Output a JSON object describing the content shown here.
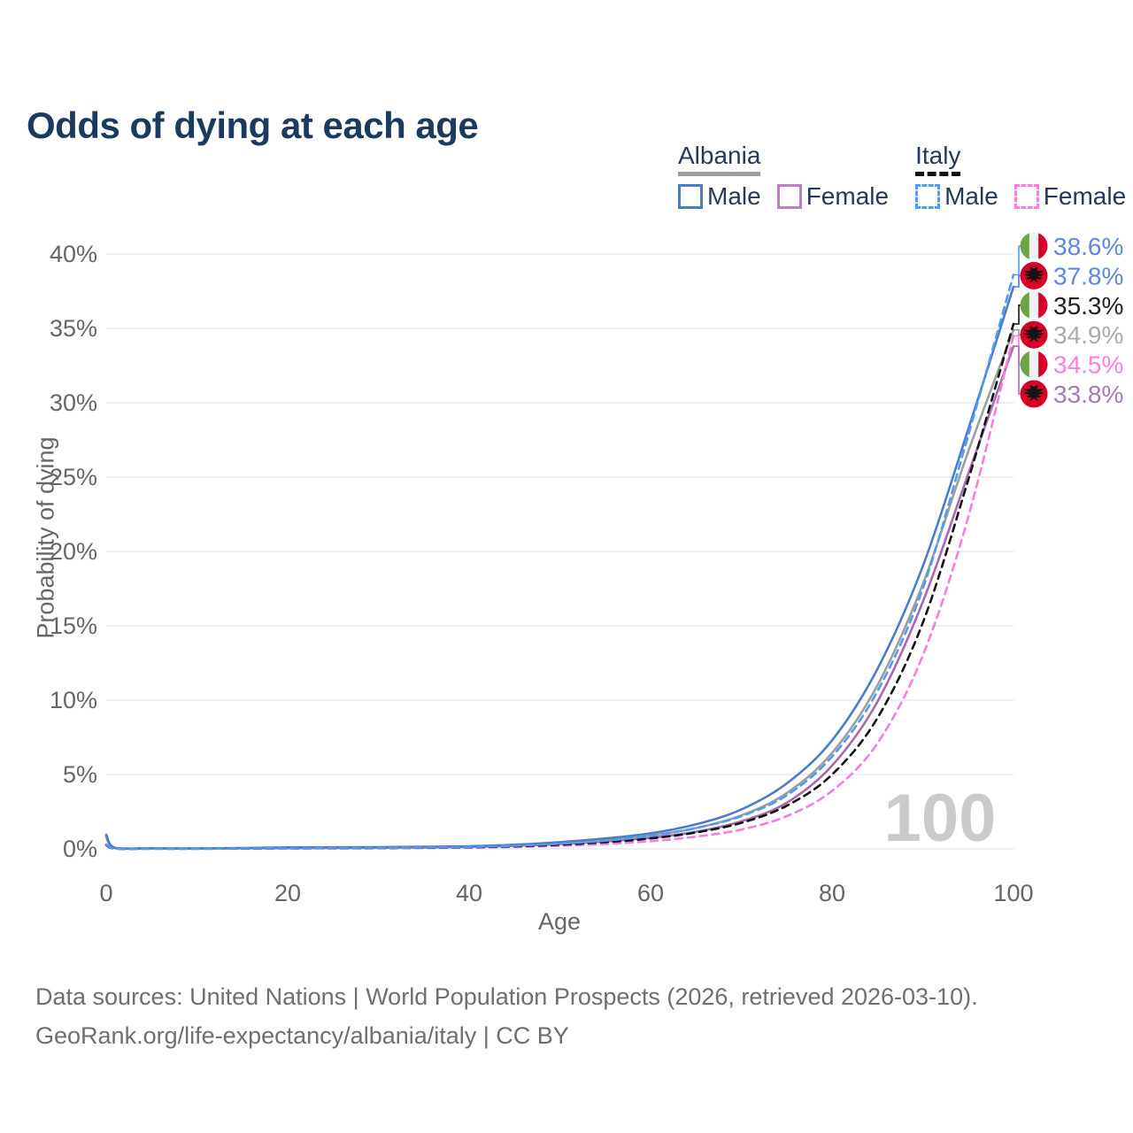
{
  "title": "Odds of dying at each age",
  "colors": {
    "title_text": "#1c3a5e",
    "legend_text": "#26395a",
    "axis_text": "#666666",
    "gridline": "#e8e8e8",
    "watermark": "#cbcbcb",
    "footer_text": "#6f6f6f",
    "albania_flag_red": "#d80027",
    "italy_flag_green": "#6da544",
    "italy_flag_red": "#d80027"
  },
  "legend": {
    "groups": [
      {
        "country": "Albania",
        "line_style": "solid",
        "underline_color": "#9e9e9e",
        "items": [
          {
            "label": "Male",
            "color": "#4a7dc9"
          },
          {
            "label": "Female",
            "color": "#bd7fc0"
          }
        ]
      },
      {
        "country": "Italy",
        "line_style": "dashed",
        "underline_color": "#141414",
        "items": [
          {
            "label": "Male",
            "color": "#4f9bf5"
          },
          {
            "label": "Female",
            "color": "#fb7be1"
          }
        ]
      }
    ]
  },
  "chart_data": {
    "type": "line",
    "title": "Odds of dying at each age",
    "xlabel": "Age",
    "ylabel": "Probability of dying",
    "x_ticks": [
      0,
      20,
      40,
      60,
      80,
      100
    ],
    "y_ticks": [
      "0%",
      "5%",
      "10%",
      "15%",
      "20%",
      "25%",
      "30%",
      "35%",
      "40%"
    ],
    "xlim": [
      0,
      100
    ],
    "ylim_pct": [
      0,
      40
    ],
    "grid": "horizontal",
    "legend_position": "top-right",
    "watermark": "100",
    "ages": [
      0,
      1,
      5,
      10,
      15,
      20,
      25,
      30,
      35,
      40,
      45,
      50,
      55,
      60,
      65,
      70,
      75,
      80,
      85,
      90,
      95,
      100
    ],
    "series": [
      {
        "id": "italy-male",
        "name": "Italy Male",
        "country": "Italy",
        "sex": "male",
        "color": "#4f9bf5",
        "dashed": true,
        "flag": "italy",
        "end_label": "38.6%",
        "end_value_pct": 38.6,
        "end_label_color": "#5c89e0",
        "values_pct": [
          0.3,
          0.02,
          0.015,
          0.013,
          0.03,
          0.05,
          0.06,
          0.07,
          0.09,
          0.13,
          0.21,
          0.35,
          0.55,
          0.88,
          1.4,
          2.2,
          3.6,
          6.2,
          10.6,
          17.5,
          27.8,
          38.6
        ]
      },
      {
        "id": "albania-male",
        "name": "Albania Male",
        "country": "Albania",
        "sex": "male",
        "color": "#4a7dc9",
        "dashed": false,
        "flag": "albania",
        "end_label": "37.8%",
        "end_value_pct": 37.8,
        "end_label_color": "#5c89e0",
        "values_pct": [
          0.95,
          0.06,
          0.04,
          0.03,
          0.06,
          0.1,
          0.11,
          0.12,
          0.14,
          0.18,
          0.28,
          0.45,
          0.7,
          1.05,
          1.65,
          2.65,
          4.4,
          7.3,
          12.1,
          19.0,
          28.2,
          37.8
        ]
      },
      {
        "id": "italy-both",
        "name": "Italy Both sexes",
        "country": "Italy",
        "sex": "both",
        "color": "#141414",
        "dashed": true,
        "flag": "italy",
        "end_label": "35.3%",
        "end_value_pct": 35.3,
        "end_label_color": "#222222",
        "values_pct": [
          0.27,
          0.018,
          0.013,
          0.011,
          0.025,
          0.04,
          0.05,
          0.06,
          0.08,
          0.11,
          0.17,
          0.28,
          0.45,
          0.7,
          1.1,
          1.75,
          2.9,
          5.0,
          8.8,
          15.2,
          24.8,
          35.3
        ]
      },
      {
        "id": "albania-both",
        "name": "Albania Both sexes",
        "country": "Albania",
        "sex": "both",
        "color": "#9e9e9e",
        "dashed": false,
        "flag": "albania",
        "end_label": "34.9%",
        "end_value_pct": 34.9,
        "end_label_color": "#ababab",
        "values_pct": [
          0.88,
          0.055,
          0.035,
          0.025,
          0.05,
          0.08,
          0.09,
          0.1,
          0.12,
          0.16,
          0.24,
          0.39,
          0.6,
          0.9,
          1.4,
          2.25,
          3.75,
          6.45,
          11.0,
          17.8,
          26.7,
          34.9
        ]
      },
      {
        "id": "italy-female",
        "name": "Italy Female",
        "country": "Italy",
        "sex": "female",
        "color": "#fb7be1",
        "dashed": true,
        "flag": "italy",
        "end_label": "34.5%",
        "end_value_pct": 34.5,
        "end_label_color": "#fd7ce5",
        "values_pct": [
          0.24,
          0.015,
          0.012,
          0.01,
          0.02,
          0.03,
          0.04,
          0.05,
          0.06,
          0.09,
          0.13,
          0.21,
          0.33,
          0.52,
          0.82,
          1.3,
          2.2,
          3.9,
          7.1,
          13.0,
          22.3,
          34.5
        ]
      },
      {
        "id": "albania-female",
        "name": "Albania Female",
        "country": "Albania",
        "sex": "female",
        "color": "#a869af",
        "dashed": false,
        "flag": "albania",
        "end_label": "33.8%",
        "end_value_pct": 33.8,
        "end_label_color": "#a978b8",
        "values_pct": [
          0.8,
          0.05,
          0.03,
          0.02,
          0.04,
          0.05,
          0.06,
          0.07,
          0.09,
          0.13,
          0.2,
          0.32,
          0.5,
          0.75,
          1.15,
          1.85,
          3.1,
          5.6,
          9.9,
          16.6,
          25.2,
          33.8
        ]
      }
    ]
  },
  "footer": {
    "line1": "Data sources: United Nations | World Population Prospects (2026, retrieved 2026-03-10).",
    "line2": "GeoRank.org/life-expectancy/albania/italy | CC BY"
  }
}
